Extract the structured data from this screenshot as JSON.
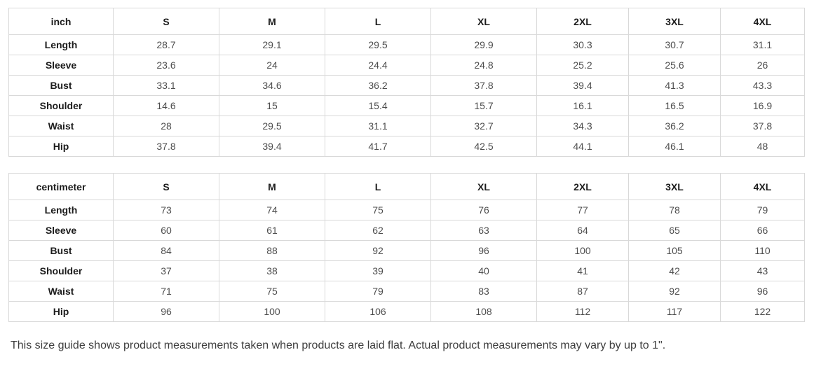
{
  "size_chart": {
    "size_columns": [
      "S",
      "M",
      "L",
      "XL",
      "2XL",
      "3XL",
      "4XL"
    ],
    "tables": [
      {
        "unit_label": "inch",
        "rows": [
          {
            "label": "Length",
            "values": [
              "28.7",
              "29.1",
              "29.5",
              "29.9",
              "30.3",
              "30.7",
              "31.1"
            ]
          },
          {
            "label": "Sleeve",
            "values": [
              "23.6",
              "24",
              "24.4",
              "24.8",
              "25.2",
              "25.6",
              "26"
            ]
          },
          {
            "label": "Bust",
            "values": [
              "33.1",
              "34.6",
              "36.2",
              "37.8",
              "39.4",
              "41.3",
              "43.3"
            ]
          },
          {
            "label": "Shoulder",
            "values": [
              "14.6",
              "15",
              "15.4",
              "15.7",
              "16.1",
              "16.5",
              "16.9"
            ]
          },
          {
            "label": "Waist",
            "values": [
              "28",
              "29.5",
              "31.1",
              "32.7",
              "34.3",
              "36.2",
              "37.8"
            ]
          },
          {
            "label": "Hip",
            "values": [
              "37.8",
              "39.4",
              "41.7",
              "42.5",
              "44.1",
              "46.1",
              "48"
            ]
          }
        ]
      },
      {
        "unit_label": "centimeter",
        "rows": [
          {
            "label": "Length",
            "values": [
              "73",
              "74",
              "75",
              "76",
              "77",
              "78",
              "79"
            ]
          },
          {
            "label": "Sleeve",
            "values": [
              "60",
              "61",
              "62",
              "63",
              "64",
              "65",
              "66"
            ]
          },
          {
            "label": "Bust",
            "values": [
              "84",
              "88",
              "92",
              "96",
              "100",
              "105",
              "110"
            ]
          },
          {
            "label": "Shoulder",
            "values": [
              "37",
              "38",
              "39",
              "40",
              "41",
              "42",
              "43"
            ]
          },
          {
            "label": "Waist",
            "values": [
              "71",
              "75",
              "79",
              "83",
              "87",
              "92",
              "96"
            ]
          },
          {
            "label": "Hip",
            "values": [
              "96",
              "100",
              "106",
              "108",
              "112",
              "117",
              "122"
            ]
          }
        ]
      }
    ],
    "footnote": "This size guide shows product measurements taken when products are laid flat. Actual product measurements may vary by up to 1\"."
  },
  "colors": {
    "table_border": "#d9d9d9",
    "header_text": "#1c1c1c",
    "cell_text": "#4d4d4d",
    "footnote_text": "#3d3d3d",
    "background": "#ffffff"
  }
}
